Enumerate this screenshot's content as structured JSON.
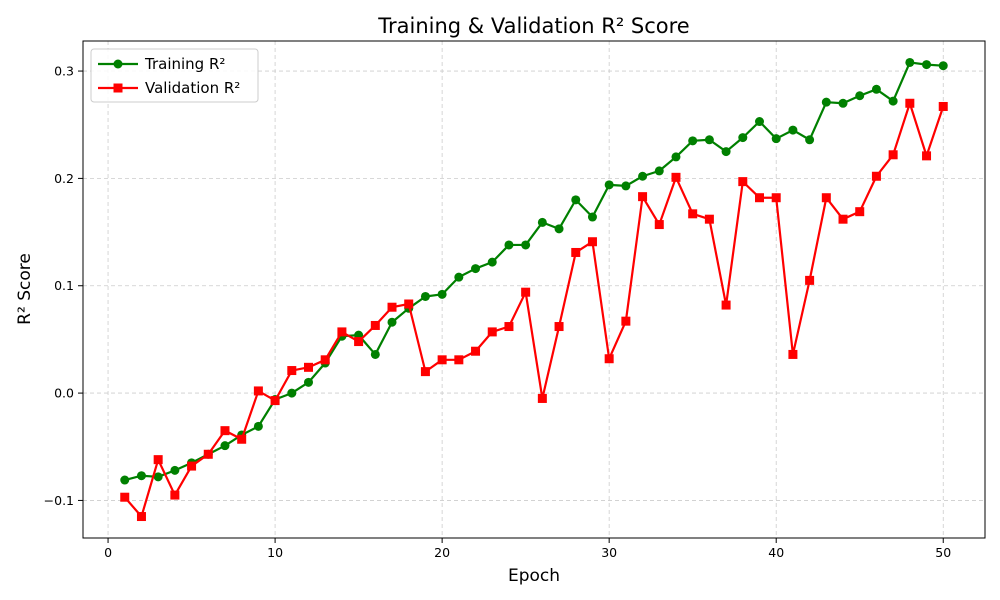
{
  "chart_data": {
    "type": "line",
    "title": "Training & Validation R² Score",
    "xlabel": "Epoch",
    "ylabel": "R² Score",
    "xlim": [
      -1.5,
      52.5
    ],
    "ylim": [
      -0.135,
      0.328
    ],
    "xticks": [
      0,
      10,
      20,
      30,
      40,
      50
    ],
    "xtick_labels": [
      "0",
      "10",
      "20",
      "30",
      "40",
      "50"
    ],
    "yticks": [
      -0.1,
      0.0,
      0.1,
      0.2,
      0.3
    ],
    "ytick_labels": [
      "−0.1",
      "0.0",
      "0.1",
      "0.2",
      "0.3"
    ],
    "grid": true,
    "legend_position": "top-left",
    "x": [
      1,
      2,
      3,
      4,
      5,
      6,
      7,
      8,
      9,
      10,
      11,
      12,
      13,
      14,
      15,
      16,
      17,
      18,
      19,
      20,
      21,
      22,
      23,
      24,
      25,
      26,
      27,
      28,
      29,
      30,
      31,
      32,
      33,
      34,
      35,
      36,
      37,
      38,
      39,
      40,
      41,
      42,
      43,
      44,
      45,
      46,
      47,
      48,
      49,
      50
    ],
    "series": [
      {
        "name": "Training R²",
        "color": "#008000",
        "marker": "circle",
        "values": [
          -0.081,
          -0.077,
          -0.078,
          -0.072,
          -0.065,
          -0.057,
          -0.049,
          -0.039,
          -0.031,
          -0.006,
          0.0,
          0.01,
          0.028,
          0.053,
          0.054,
          0.036,
          0.066,
          0.079,
          0.09,
          0.092,
          0.108,
          0.116,
          0.122,
          0.138,
          0.138,
          0.159,
          0.153,
          0.18,
          0.164,
          0.194,
          0.193,
          0.202,
          0.207,
          0.22,
          0.235,
          0.236,
          0.225,
          0.238,
          0.253,
          0.237,
          0.245,
          0.236,
          0.271,
          0.27,
          0.277,
          0.283,
          0.272,
          0.308,
          0.306,
          0.305
        ]
      },
      {
        "name": "Validation R²",
        "color": "#ff0000",
        "marker": "square",
        "values": [
          -0.097,
          -0.115,
          -0.062,
          -0.095,
          -0.068,
          -0.057,
          -0.035,
          -0.043,
          0.002,
          -0.007,
          0.021,
          0.024,
          0.031,
          0.057,
          0.048,
          0.063,
          0.08,
          0.083,
          0.02,
          0.031,
          0.031,
          0.039,
          0.057,
          0.062,
          0.094,
          -0.005,
          0.062,
          0.131,
          0.141,
          0.032,
          0.067,
          0.183,
          0.157,
          0.201,
          0.167,
          0.162,
          0.082,
          0.197,
          0.182,
          0.182,
          0.036,
          0.105,
          0.182,
          0.162,
          0.169,
          0.202,
          0.222,
          0.27,
          0.221,
          0.267
        ]
      }
    ]
  }
}
